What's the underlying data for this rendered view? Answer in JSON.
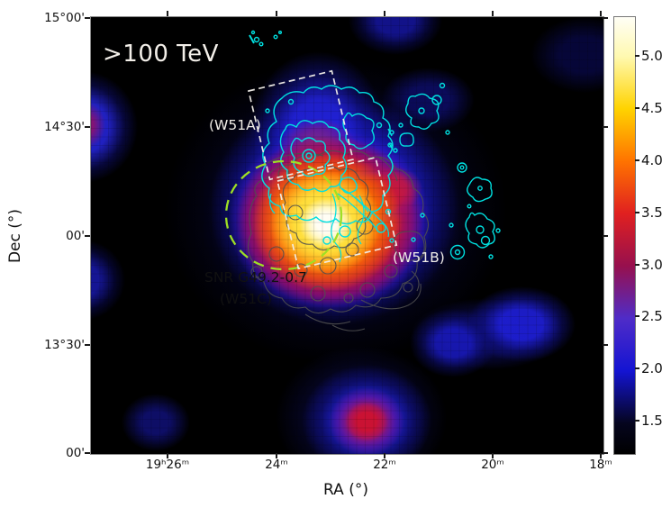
{
  "chart_data": {
    "type": "heatmap",
    "title_annotation": ">100 TeV",
    "xlabel": "RA (°)",
    "ylabel": "Dec (°)",
    "x_tick_labels": [
      "19ʰ26ᵐ",
      "24ᵐ",
      "22ᵐ",
      "20ᵐ",
      "18ᵐ"
    ],
    "y_tick_labels": [
      "15°00'",
      "14°30'",
      "00'",
      "13°30'",
      "00'"
    ],
    "axes_note": "equatorial coordinates; RA increases to the left, Dec from 13°00' (bottom) to 15°00' (top)",
    "colorbar": {
      "orientation": "vertical-right",
      "tick_labels": [
        "5.0",
        "4.5",
        "4.0",
        "3.5",
        "3.0",
        "2.5",
        "2.0",
        "1.5"
      ],
      "value_range_approx": [
        1.2,
        5.4
      ],
      "colormap_description": "black → dark navy → blue → violet → magenta-red → red → orange → yellow → white"
    },
    "annotations": {
      "tev": ">100 TeV",
      "w51a": "(W51A)",
      "w51b": "(W51B)",
      "snr_line1": "SNR G49.2-0.7",
      "snr_line2": "(W51C)"
    },
    "overlays": {
      "dashed_boxes": [
        {
          "label": "(W51A)",
          "style": "white dashed rotated rectangle, upper middle"
        },
        {
          "label": "(W51B)",
          "style": "white dashed rotated rectangle, center-right of map middle"
        }
      ],
      "dashed_ellipse": {
        "label": "SNR G49.2-0.7 (W51C)",
        "style": "green-yellow dashed circle around central bright source"
      },
      "contour_sets": [
        {
          "name": "radio-contours-cyan",
          "location": "W51A complex, W51B filaments, clumps east of boxes, specks near top"
        },
        {
          "name": "contours-gray",
          "location": "wiggly loops over central bright emission"
        }
      ]
    },
    "features": [
      {
        "name": "central bright source inside SNR G49.2-0.7 (W51C) circle",
        "approx_ra": "19ʰ23ᵐ",
        "approx_dec": "14°05'",
        "peak_value_approx": 5.4
      },
      {
        "name": "red arm toward W51B box",
        "approx_ra": "19ʰ22.3ᵐ",
        "approx_dec": "14°12'",
        "peak_value_approx": 4.0
      },
      {
        "name": "south blob with red core",
        "approx_ra": "19ʰ22.4ᵐ",
        "approx_dec": "13°09'",
        "peak_value_approx": 3.6
      },
      {
        "name": "southeast blue blob (elongated)",
        "approx_ra": "19ʰ19.7ᵐ",
        "approx_dec": "13°35'",
        "peak_value_approx": 2.4
      },
      {
        "name": "west edge blob with purple core",
        "approx_ra": ">19ʰ27ᵐ (edge)",
        "approx_dec": "14°30'",
        "peak_value_approx": 3.0
      },
      {
        "name": "west edge blue blob",
        "approx_ra": ">19ʰ27ᵐ (edge)",
        "approx_dec": "13°48'",
        "peak_value_approx": 2.2
      },
      {
        "name": "faint southwest blob",
        "approx_ra": "19ʰ26.2ᵐ",
        "approx_dec": "13°09'",
        "peak_value_approx": 1.9
      },
      {
        "name": "faint blue patch at north edge",
        "approx_ra": "19ʰ21.8ᵐ",
        "approx_dec": "14°59'",
        "peak_value_approx": 2.1
      },
      {
        "name": "faint blue patch north-center",
        "approx_ra": "19ʰ21.2ᵐ",
        "approx_dec": "14°38'",
        "peak_value_approx": 1.9
      }
    ]
  },
  "colors": {
    "figure_background": "#FFFFFF",
    "map_background": "#000000",
    "annotation_green": "#9FE024",
    "contour_cyan": "#00E0E0",
    "contour_gray": "#4F4F4F",
    "box_white": "#F2EFE9",
    "text_white": "#F3EFE9",
    "axis_text": "#111111"
  }
}
